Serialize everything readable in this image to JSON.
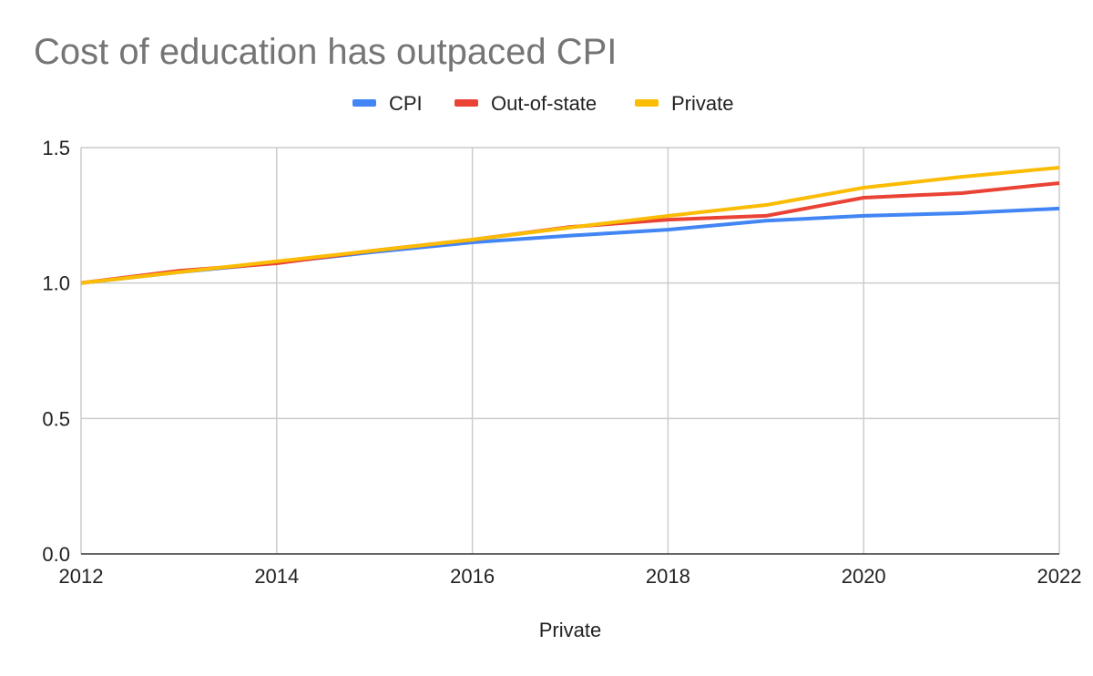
{
  "chart_data": {
    "type": "line",
    "title": "Cost of education has outpaced CPI",
    "xlabel": "Private",
    "ylabel": "",
    "x": [
      2012,
      2013,
      2014,
      2015,
      2016,
      2017,
      2018,
      2019,
      2020,
      2021,
      2022
    ],
    "xlim": [
      2012,
      2022
    ],
    "ylim": [
      0,
      1.5
    ],
    "xticks": [
      "2012",
      "2014",
      "2016",
      "2018",
      "2020",
      "2022"
    ],
    "yticks": [
      "0.0",
      "0.5",
      "1.0",
      "1.5"
    ],
    "grid": true,
    "legend_position": "top",
    "series": [
      {
        "name": "CPI",
        "color": "#4285f4",
        "values": [
          1.0,
          1.04,
          1.075,
          1.115,
          1.15,
          1.175,
          1.197,
          1.23,
          1.248,
          1.258,
          1.275
        ]
      },
      {
        "name": "Out-of-state",
        "color": "#ea4335",
        "values": [
          1.0,
          1.045,
          1.073,
          1.12,
          1.16,
          1.207,
          1.234,
          1.248,
          1.315,
          1.332,
          1.369
        ]
      },
      {
        "name": "Private",
        "color": "#fbbc04",
        "values": [
          1.0,
          1.04,
          1.08,
          1.12,
          1.16,
          1.205,
          1.248,
          1.288,
          1.352,
          1.392,
          1.426
        ]
      }
    ]
  }
}
